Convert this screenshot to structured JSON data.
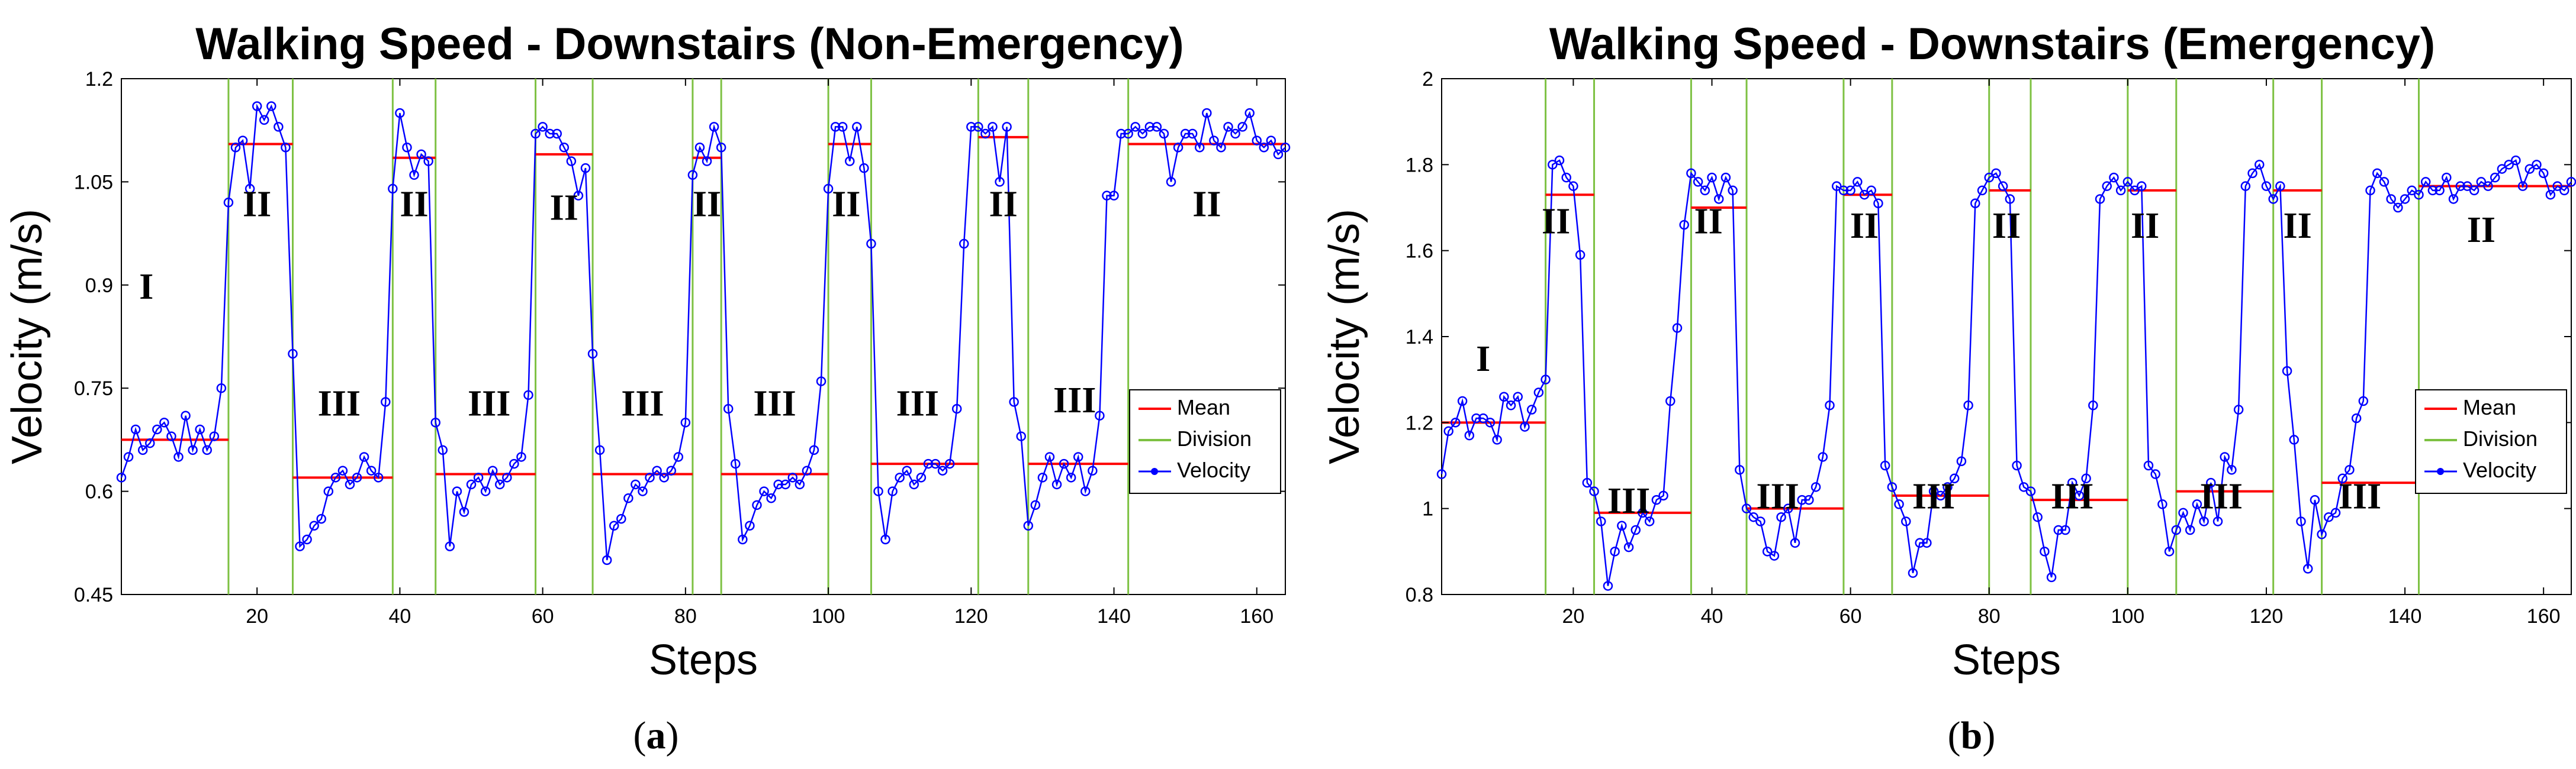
{
  "chart_data": [
    {
      "type": "line",
      "title": "Walking Speed - Downstairs (Non-Emergency)",
      "xlabel": "Steps",
      "ylabel": "Velocity (m/s)",
      "caption_letter": "a",
      "xlim": [
        1,
        164
      ],
      "ylim": [
        0.45,
        1.2
      ],
      "xticks": [
        20,
        40,
        60,
        80,
        100,
        120,
        140,
        160
      ],
      "yticks": [
        0.45,
        0.6,
        0.75,
        0.9,
        1.05,
        1.2
      ],
      "ytick_labels": [
        "0.45",
        "0.6",
        "0.75",
        "0.9",
        "1.05",
        "1.2"
      ],
      "legend": {
        "position": "right-middle",
        "entries": [
          "Mean",
          "Division",
          "Velocity"
        ]
      },
      "colors": {
        "mean": "#ff0000",
        "division": "#7dc142",
        "velocity": "#0000ff"
      },
      "divisions": [
        16,
        25,
        39,
        45,
        59,
        67,
        81,
        85,
        100,
        106,
        121,
        128,
        142
      ],
      "means": [
        {
          "x0": 1,
          "x1": 16,
          "y": 0.675
        },
        {
          "x0": 16,
          "x1": 25,
          "y": 1.105
        },
        {
          "x0": 25,
          "x1": 39,
          "y": 0.62
        },
        {
          "x0": 39,
          "x1": 45,
          "y": 1.085
        },
        {
          "x0": 45,
          "x1": 59,
          "y": 0.625
        },
        {
          "x0": 59,
          "x1": 67,
          "y": 1.09
        },
        {
          "x0": 67,
          "x1": 81,
          "y": 0.625
        },
        {
          "x0": 81,
          "x1": 85,
          "y": 1.085
        },
        {
          "x0": 85,
          "x1": 100,
          "y": 0.625
        },
        {
          "x0": 100,
          "x1": 106,
          "y": 1.105
        },
        {
          "x0": 106,
          "x1": 121,
          "y": 0.64
        },
        {
          "x0": 121,
          "x1": 128,
          "y": 1.115
        },
        {
          "x0": 128,
          "x1": 142,
          "y": 0.64
        },
        {
          "x0": 142,
          "x1": 164,
          "y": 1.105
        }
      ],
      "regions": [
        {
          "label": "I",
          "x": 4.5,
          "y": 0.88
        },
        {
          "label": "II",
          "x": 20,
          "y": 1.0
        },
        {
          "label": "III",
          "x": 31.5,
          "y": 0.71
        },
        {
          "label": "II",
          "x": 42,
          "y": 1.0
        },
        {
          "label": "III",
          "x": 52.5,
          "y": 0.71
        },
        {
          "label": "II",
          "x": 63,
          "y": 0.995
        },
        {
          "label": "III",
          "x": 74,
          "y": 0.71
        },
        {
          "label": "II",
          "x": 83,
          "y": 1.0
        },
        {
          "label": "III",
          "x": 92.5,
          "y": 0.71
        },
        {
          "label": "II",
          "x": 102.5,
          "y": 1.0
        },
        {
          "label": "III",
          "x": 112.5,
          "y": 0.71
        },
        {
          "label": "II",
          "x": 124.5,
          "y": 1.0
        },
        {
          "label": "III",
          "x": 134.5,
          "y": 0.715
        },
        {
          "label": "II",
          "x": 153,
          "y": 1.0
        }
      ],
      "series": [
        {
          "name": "Velocity",
          "x": [
            1,
            2,
            3,
            4,
            5,
            6,
            7,
            8,
            9,
            10,
            11,
            12,
            13,
            14,
            15,
            16,
            17,
            18,
            19,
            20,
            21,
            22,
            23,
            24,
            25,
            26,
            27,
            28,
            29,
            30,
            31,
            32,
            33,
            34,
            35,
            36,
            37,
            38,
            39,
            40,
            41,
            42,
            43,
            44,
            45,
            46,
            47,
            48,
            49,
            50,
            51,
            52,
            53,
            54,
            55,
            56,
            57,
            58,
            59,
            60,
            61,
            62,
            63,
            64,
            65,
            66,
            67,
            68,
            69,
            70,
            71,
            72,
            73,
            74,
            75,
            76,
            77,
            78,
            79,
            80,
            81,
            82,
            83,
            84,
            85,
            86,
            87,
            88,
            89,
            90,
            91,
            92,
            93,
            94,
            95,
            96,
            97,
            98,
            99,
            100,
            101,
            102,
            103,
            104,
            105,
            106,
            107,
            108,
            109,
            110,
            111,
            112,
            113,
            114,
            115,
            116,
            117,
            118,
            119,
            120,
            121,
            122,
            123,
            124,
            125,
            126,
            127,
            128,
            129,
            130,
            131,
            132,
            133,
            134,
            135,
            136,
            137,
            138,
            139,
            140,
            141,
            142,
            143,
            144,
            145,
            146,
            147,
            148,
            149,
            150,
            151,
            152,
            153,
            154,
            155,
            156,
            157,
            158,
            159,
            160,
            161,
            162,
            163,
            164
          ],
          "values": [
            0.62,
            0.65,
            0.69,
            0.66,
            0.67,
            0.69,
            0.7,
            0.68,
            0.65,
            0.71,
            0.66,
            0.69,
            0.66,
            0.68,
            0.75,
            1.02,
            1.1,
            1.11,
            1.04,
            1.16,
            1.14,
            1.16,
            1.13,
            1.1,
            0.8,
            0.52,
            0.53,
            0.55,
            0.56,
            0.6,
            0.62,
            0.63,
            0.61,
            0.62,
            0.65,
            0.63,
            0.62,
            0.73,
            1.04,
            1.15,
            1.1,
            1.06,
            1.09,
            1.08,
            0.7,
            0.66,
            0.52,
            0.6,
            0.57,
            0.61,
            0.62,
            0.6,
            0.63,
            0.61,
            0.62,
            0.64,
            0.65,
            0.74,
            1.12,
            1.13,
            1.12,
            1.12,
            1.1,
            1.08,
            1.03,
            1.07,
            0.8,
            0.66,
            0.5,
            0.55,
            0.56,
            0.59,
            0.61,
            0.6,
            0.62,
            0.63,
            0.62,
            0.63,
            0.65,
            0.7,
            1.06,
            1.1,
            1.08,
            1.13,
            1.1,
            0.72,
            0.64,
            0.53,
            0.55,
            0.58,
            0.6,
            0.59,
            0.61,
            0.61,
            0.62,
            0.61,
            0.63,
            0.66,
            0.76,
            1.04,
            1.13,
            1.13,
            1.08,
            1.13,
            1.07,
            0.96,
            0.6,
            0.53,
            0.6,
            0.62,
            0.63,
            0.61,
            0.62,
            0.64,
            0.64,
            0.63,
            0.64,
            0.72,
            0.96,
            1.13,
            1.13,
            1.12,
            1.13,
            1.05,
            1.13,
            0.73,
            0.68,
            0.55,
            0.58,
            0.62,
            0.65,
            0.61,
            0.64,
            0.62,
            0.65,
            0.6,
            0.63,
            0.71,
            1.03,
            1.03,
            1.12,
            1.12,
            1.13,
            1.12,
            1.13,
            1.13,
            1.12,
            1.05,
            1.1,
            1.12,
            1.12,
            1.1,
            1.15,
            1.11,
            1.1,
            1.13,
            1.12,
            1.13,
            1.15,
            1.11,
            1.1,
            1.11,
            1.09,
            1.1
          ]
        }
      ]
    },
    {
      "type": "line",
      "title": "Walking Speed - Downstairs (Emergency)",
      "xlabel": "Steps",
      "ylabel": "Velocity (m/s)",
      "caption_letter": "b",
      "xlim": [
        1,
        164
      ],
      "ylim": [
        0.8,
        2.0
      ],
      "xticks": [
        20,
        40,
        60,
        80,
        100,
        120,
        140,
        160
      ],
      "yticks": [
        0.8,
        1.0,
        1.2,
        1.4,
        1.6,
        1.8,
        2.0
      ],
      "ytick_labels": [
        "0.8",
        "1",
        "1.2",
        "1.4",
        "1.6",
        "1.8",
        "2"
      ],
      "legend": {
        "position": "right-middle",
        "entries": [
          "Mean",
          "Division",
          "Velocity"
        ]
      },
      "colors": {
        "mean": "#ff0000",
        "division": "#7dc142",
        "velocity": "#0000ff"
      },
      "divisions": [
        16,
        23,
        37,
        45,
        59,
        66,
        80,
        86,
        100,
        107,
        121,
        128,
        142
      ],
      "means": [
        {
          "x0": 1,
          "x1": 16,
          "y": 1.2
        },
        {
          "x0": 16,
          "x1": 23,
          "y": 1.73
        },
        {
          "x0": 23,
          "x1": 37,
          "y": 0.99
        },
        {
          "x0": 37,
          "x1": 45,
          "y": 1.7
        },
        {
          "x0": 45,
          "x1": 59,
          "y": 1.0
        },
        {
          "x0": 59,
          "x1": 66,
          "y": 1.73
        },
        {
          "x0": 66,
          "x1": 80,
          "y": 1.03
        },
        {
          "x0": 80,
          "x1": 86,
          "y": 1.74
        },
        {
          "x0": 86,
          "x1": 100,
          "y": 1.02
        },
        {
          "x0": 100,
          "x1": 107,
          "y": 1.74
        },
        {
          "x0": 107,
          "x1": 121,
          "y": 1.04
        },
        {
          "x0": 121,
          "x1": 128,
          "y": 1.74
        },
        {
          "x0": 128,
          "x1": 142,
          "y": 1.06
        },
        {
          "x0": 142,
          "x1": 164,
          "y": 1.75
        }
      ],
      "regions": [
        {
          "label": "I",
          "x": 7,
          "y": 1.32
        },
        {
          "label": "II",
          "x": 17.5,
          "y": 1.64
        },
        {
          "label": "III",
          "x": 28,
          "y": 0.99
        },
        {
          "label": "II",
          "x": 39.5,
          "y": 1.64
        },
        {
          "label": "III",
          "x": 49.5,
          "y": 1.0
        },
        {
          "label": "II",
          "x": 62,
          "y": 1.63
        },
        {
          "label": "III",
          "x": 72,
          "y": 1.0
        },
        {
          "label": "II",
          "x": 82.5,
          "y": 1.63
        },
        {
          "label": "III",
          "x": 92,
          "y": 1.0
        },
        {
          "label": "II",
          "x": 102.5,
          "y": 1.63
        },
        {
          "label": "III",
          "x": 113.5,
          "y": 1.0
        },
        {
          "label": "II",
          "x": 124.5,
          "y": 1.63
        },
        {
          "label": "III",
          "x": 133.5,
          "y": 1.0
        },
        {
          "label": "II",
          "x": 151,
          "y": 1.62
        }
      ],
      "series": [
        {
          "name": "Velocity",
          "x": [
            1,
            2,
            3,
            4,
            5,
            6,
            7,
            8,
            9,
            10,
            11,
            12,
            13,
            14,
            15,
            16,
            17,
            18,
            19,
            20,
            21,
            22,
            23,
            24,
            25,
            26,
            27,
            28,
            29,
            30,
            31,
            32,
            33,
            34,
            35,
            36,
            37,
            38,
            39,
            40,
            41,
            42,
            43,
            44,
            45,
            46,
            47,
            48,
            49,
            50,
            51,
            52,
            53,
            54,
            55,
            56,
            57,
            58,
            59,
            60,
            61,
            62,
            63,
            64,
            65,
            66,
            67,
            68,
            69,
            70,
            71,
            72,
            73,
            74,
            75,
            76,
            77,
            78,
            79,
            80,
            81,
            82,
            83,
            84,
            85,
            86,
            87,
            88,
            89,
            90,
            91,
            92,
            93,
            94,
            95,
            96,
            97,
            98,
            99,
            100,
            101,
            102,
            103,
            104,
            105,
            106,
            107,
            108,
            109,
            110,
            111,
            112,
            113,
            114,
            115,
            116,
            117,
            118,
            119,
            120,
            121,
            122,
            123,
            124,
            125,
            126,
            127,
            128,
            129,
            130,
            131,
            132,
            133,
            134,
            135,
            136,
            137,
            138,
            139,
            140,
            141,
            142,
            143,
            144,
            145,
            146,
            147,
            148,
            149,
            150,
            151,
            152,
            153,
            154,
            155,
            156,
            157,
            158,
            159,
            160,
            161,
            162,
            163,
            164
          ],
          "values": [
            1.08,
            1.18,
            1.2,
            1.25,
            1.17,
            1.21,
            1.21,
            1.2,
            1.16,
            1.26,
            1.24,
            1.26,
            1.19,
            1.23,
            1.27,
            1.3,
            1.8,
            1.81,
            1.77,
            1.75,
            1.59,
            1.06,
            1.04,
            0.97,
            0.82,
            0.9,
            0.96,
            0.91,
            0.95,
            0.99,
            0.97,
            1.02,
            1.03,
            1.25,
            1.42,
            1.66,
            1.78,
            1.76,
            1.74,
            1.77,
            1.72,
            1.77,
            1.74,
            1.09,
            1.0,
            0.98,
            0.97,
            0.9,
            0.89,
            0.98,
            1.0,
            0.92,
            1.02,
            1.02,
            1.05,
            1.12,
            1.24,
            1.75,
            1.74,
            1.74,
            1.76,
            1.73,
            1.74,
            1.71,
            1.1,
            1.05,
            1.01,
            0.97,
            0.85,
            0.92,
            0.92,
            1.04,
            1.03,
            1.05,
            1.07,
            1.11,
            1.24,
            1.71,
            1.74,
            1.77,
            1.78,
            1.75,
            1.72,
            1.1,
            1.05,
            1.04,
            0.98,
            0.9,
            0.84,
            0.95,
            0.95,
            1.06,
            1.03,
            1.07,
            1.24,
            1.72,
            1.75,
            1.77,
            1.74,
            1.76,
            1.74,
            1.75,
            1.1,
            1.08,
            1.01,
            0.9,
            0.95,
            0.99,
            0.95,
            1.01,
            0.97,
            1.06,
            0.97,
            1.12,
            1.09,
            1.23,
            1.75,
            1.78,
            1.8,
            1.75,
            1.72,
            1.75,
            1.32,
            1.16,
            0.97,
            0.86,
            1.02,
            0.94,
            0.98,
            0.99,
            1.07,
            1.09,
            1.21,
            1.25,
            1.74,
            1.78,
            1.76,
            1.72,
            1.7,
            1.72,
            1.74,
            1.73,
            1.76,
            1.74,
            1.74,
            1.77,
            1.72,
            1.75,
            1.75,
            1.74,
            1.76,
            1.75,
            1.77,
            1.79,
            1.8,
            1.81,
            1.75,
            1.79,
            1.8,
            1.78,
            1.73,
            1.75,
            1.74,
            1.76
          ]
        }
      ]
    }
  ]
}
